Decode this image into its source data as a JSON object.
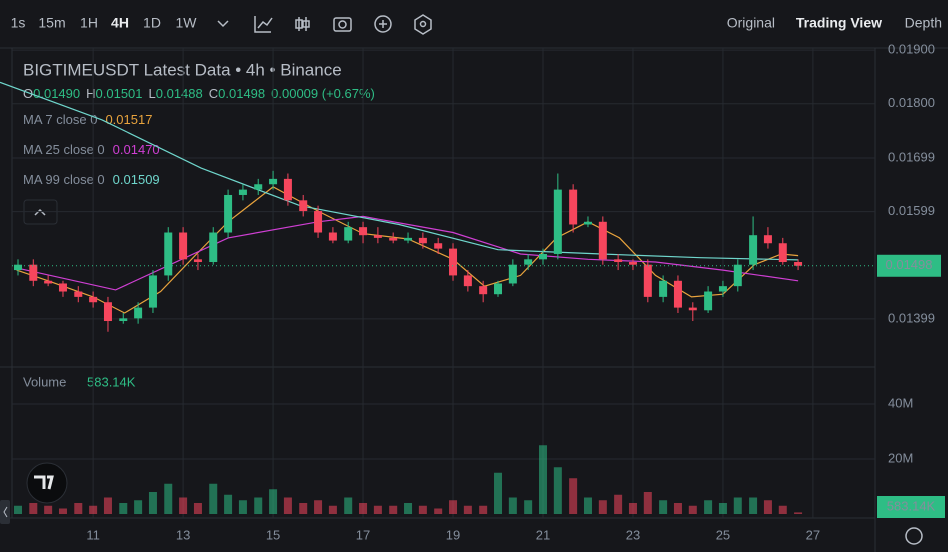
{
  "toolbar": {
    "intervals": [
      "1s",
      "15m",
      "1H",
      "4H",
      "1D",
      "1W"
    ],
    "views": [
      "Original",
      "Trading View",
      "Depth"
    ]
  },
  "chart_data": {
    "type": "candlestick",
    "title": "BIGTIMEUSDT Latest Data • 4h • Binance",
    "ohlc_legend": [
      {
        "key": "O",
        "value": "0.01490"
      },
      {
        "key": "H",
        "value": "0.01501"
      },
      {
        "key": "L",
        "value": "0.01488"
      },
      {
        "key": "C",
        "value": "0.01498"
      }
    ],
    "change": "0.00009 (+0.67%)",
    "up_color": "#2ebd85",
    "down_color": "#f6465d",
    "xlim": [
      8.93,
      28.38
    ],
    "xticks": [
      11,
      13,
      15,
      17,
      19,
      21,
      23,
      25,
      27
    ],
    "ylim": [
      0.01313,
      0.01904
    ],
    "yticks": [
      {
        "value": 0.019,
        "label": "0.01900"
      },
      {
        "value": 0.018,
        "label": "0.01800"
      },
      0.01699,
      0.01599,
      0.01399
    ],
    "volume_label": "Volume",
    "volume_last_label": "583.14K",
    "volume_ylim": [
      0,
      52
    ],
    "volume_yticks": [
      {
        "value": 20,
        "label": "20M"
      },
      {
        "value": 40,
        "label": "40M"
      }
    ],
    "grid": true,
    "candles": {
      "x": [
        9.33,
        9.67,
        10,
        10.33,
        10.67,
        11,
        11.33,
        11.67,
        12,
        12.33,
        12.67,
        13,
        13.33,
        13.67,
        14,
        14.33,
        14.67,
        15,
        15.33,
        15.67,
        16,
        16.33,
        16.67,
        17,
        17.33,
        17.67,
        18,
        18.33,
        18.67,
        19,
        19.33,
        19.67,
        20,
        20.33,
        20.67,
        21,
        21.33,
        21.67,
        22,
        22.33,
        22.67,
        23,
        23.33,
        23.67,
        24,
        24.33,
        24.67,
        25,
        25.33,
        25.67,
        26,
        26.33,
        26.67
      ],
      "open": [
        0.0149,
        0.015,
        0.0147,
        0.01465,
        0.0145,
        0.0144,
        0.0143,
        0.01395,
        0.014,
        0.0142,
        0.0148,
        0.0156,
        0.0151,
        0.01505,
        0.0156,
        0.0163,
        0.0164,
        0.0165,
        0.0166,
        0.0162,
        0.016,
        0.0156,
        0.01545,
        0.0157,
        0.01555,
        0.0155,
        0.01545,
        0.0155,
        0.0154,
        0.0153,
        0.0148,
        0.0146,
        0.01445,
        0.01465,
        0.015,
        0.0151,
        0.0152,
        0.0164,
        0.01575,
        0.0158,
        0.0151,
        0.01505,
        0.015,
        0.0144,
        0.0147,
        0.0142,
        0.01415,
        0.0145,
        0.0146,
        0.015,
        0.01555,
        0.0154,
        0.01505
      ],
      "high": [
        0.0151,
        0.0151,
        0.0148,
        0.0147,
        0.0146,
        0.0145,
        0.0144,
        0.0141,
        0.0143,
        0.0149,
        0.0157,
        0.0157,
        0.0152,
        0.0157,
        0.0164,
        0.0165,
        0.0166,
        0.01675,
        0.0167,
        0.0163,
        0.0161,
        0.0157,
        0.0158,
        0.0158,
        0.0157,
        0.0156,
        0.0156,
        0.0156,
        0.0155,
        0.0154,
        0.0149,
        0.0147,
        0.0147,
        0.0151,
        0.0152,
        0.0153,
        0.0167,
        0.0165,
        0.0159,
        0.0159,
        0.0152,
        0.0151,
        0.0151,
        0.0148,
        0.0148,
        0.0143,
        0.0146,
        0.0147,
        0.0151,
        0.0159,
        0.0157,
        0.0155,
        0.0151
      ],
      "low": [
        0.0148,
        0.0146,
        0.0146,
        0.0144,
        0.0143,
        0.0142,
        0.01375,
        0.0139,
        0.0139,
        0.0141,
        0.0147,
        0.015,
        0.0149,
        0.015,
        0.0155,
        0.0162,
        0.0163,
        0.0164,
        0.0161,
        0.0159,
        0.0155,
        0.0154,
        0.0154,
        0.0154,
        0.0154,
        0.0154,
        0.0154,
        0.0153,
        0.0152,
        0.0147,
        0.0145,
        0.0143,
        0.0144,
        0.0146,
        0.0149,
        0.015,
        0.0151,
        0.0156,
        0.0157,
        0.015,
        0.0149,
        0.0149,
        0.0143,
        0.0143,
        0.0141,
        0.01395,
        0.0141,
        0.0144,
        0.0145,
        0.0149,
        0.0153,
        0.015,
        0.0149
      ],
      "close": [
        0.015,
        0.0147,
        0.01465,
        0.0145,
        0.0144,
        0.0143,
        0.01395,
        0.014,
        0.0142,
        0.0148,
        0.0156,
        0.0151,
        0.01505,
        0.0156,
        0.0163,
        0.0164,
        0.0165,
        0.0166,
        0.0162,
        0.016,
        0.0156,
        0.01545,
        0.0157,
        0.01555,
        0.0155,
        0.01545,
        0.0155,
        0.0154,
        0.0153,
        0.0148,
        0.0146,
        0.01445,
        0.01465,
        0.015,
        0.0151,
        0.0152,
        0.0164,
        0.01575,
        0.0158,
        0.0151,
        0.01505,
        0.015,
        0.0144,
        0.0147,
        0.0142,
        0.01415,
        0.0145,
        0.0146,
        0.015,
        0.01555,
        0.0154,
        0.01505,
        0.01498
      ],
      "volume": [
        3,
        4,
        3,
        2,
        4,
        3,
        6,
        4,
        5,
        8,
        11,
        6,
        4,
        11,
        7,
        5,
        6,
        9,
        6,
        4,
        5,
        3,
        6,
        4,
        3,
        3,
        4,
        3,
        2,
        5,
        3,
        3,
        15,
        6,
        5,
        25,
        17,
        13,
        6,
        5,
        7,
        4,
        8,
        5,
        4,
        3,
        5,
        4,
        6,
        6,
        5,
        3,
        0.58314
      ]
    },
    "series": [
      {
        "name": "MA 7 close 0",
        "last_label": "0.01517",
        "color": "#e8a33d",
        "x": [
          9.3,
          10,
          11,
          11.7,
          12.5,
          13.3,
          14,
          15,
          16,
          17,
          18,
          19,
          19.7,
          20.5,
          21.3,
          22,
          22.7,
          23.5,
          24.3,
          25,
          25.7,
          26.3,
          26.67
        ],
        "values": [
          0.0149,
          0.0147,
          0.0144,
          0.0141,
          0.0145,
          0.0152,
          0.0158,
          0.01645,
          0.016,
          0.01558,
          0.01548,
          0.0151,
          0.0146,
          0.0148,
          0.0155,
          0.0158,
          0.0155,
          0.0148,
          0.0144,
          0.01445,
          0.015,
          0.0152,
          0.01517
        ]
      },
      {
        "name": "MA 25 close 0",
        "last_label": "0.01470",
        "color": "#cf3fd3",
        "x": [
          9.3,
          11.5,
          14,
          16,
          17,
          19,
          20.5,
          22,
          23.5,
          25,
          26.67
        ],
        "values": [
          0.01494,
          0.01453,
          0.0155,
          0.0158,
          0.0159,
          0.0156,
          0.0152,
          0.0151,
          0.01505,
          0.0149,
          0.0147
        ]
      },
      {
        "name": "MA 99 close 0",
        "last_label": "0.01509",
        "color": "#6fd6cc",
        "x": [
          8.93,
          11.2,
          13.4,
          15.6,
          17.8,
          20,
          22.3,
          24.5,
          26.67
        ],
        "values": [
          0.0184,
          0.0177,
          0.0168,
          0.0161,
          0.01575,
          0.01528,
          0.0152,
          0.01513,
          0.01509
        ]
      }
    ]
  }
}
